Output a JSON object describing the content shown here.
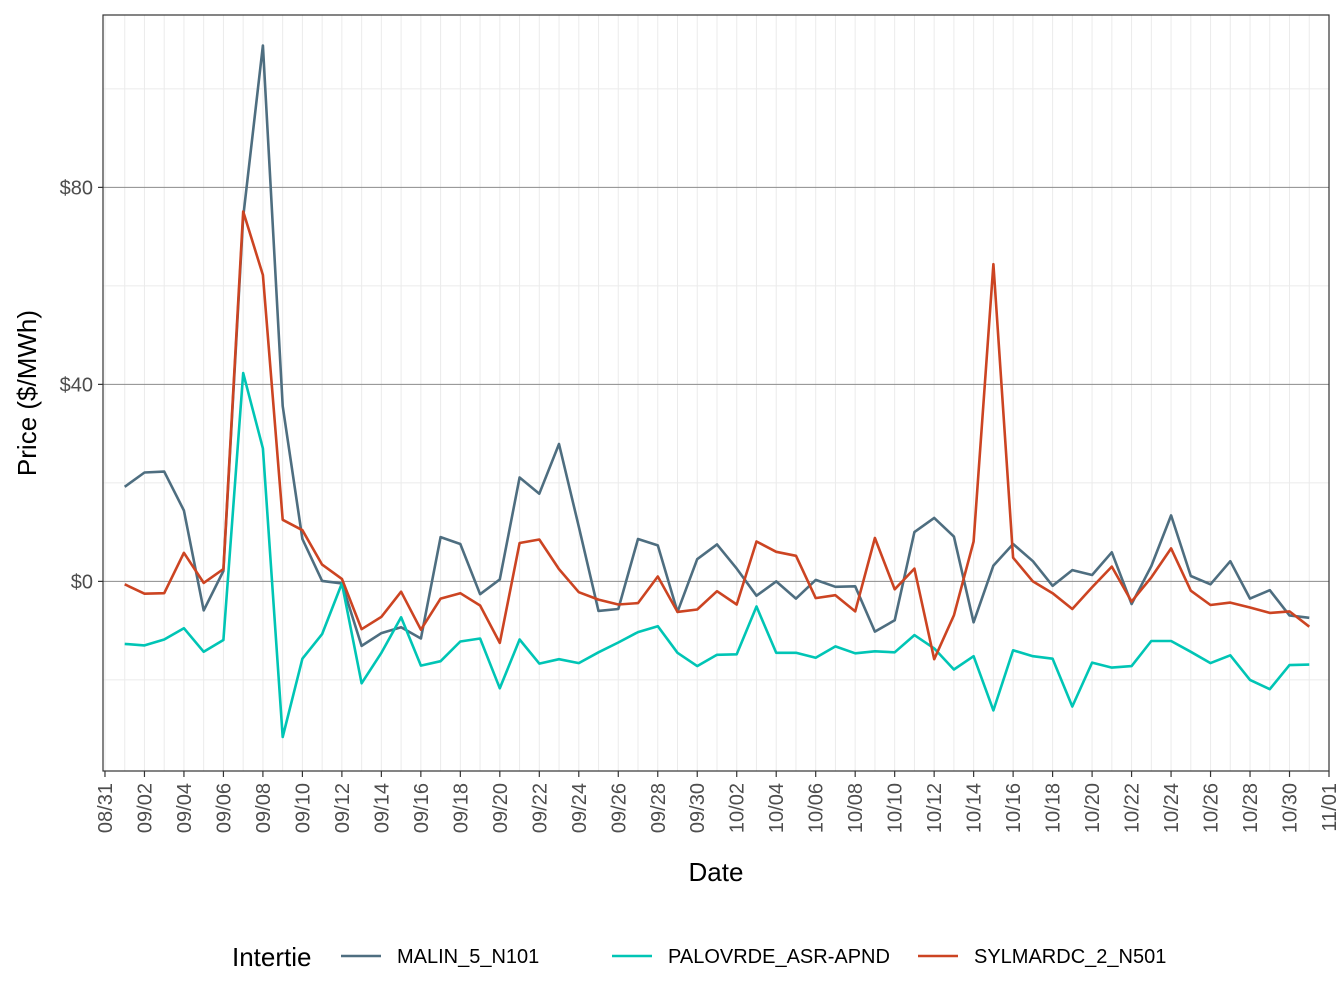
{
  "chart_data": {
    "type": "line",
    "xlabel": "Date",
    "ylabel": "Price ($/MWh)",
    "x_tick_labels": [
      "08/31",
      "09/02",
      "09/04",
      "09/06",
      "09/08",
      "09/10",
      "09/12",
      "09/14",
      "09/16",
      "09/18",
      "09/20",
      "09/22",
      "09/24",
      "09/26",
      "09/28",
      "09/30",
      "10/02",
      "10/04",
      "10/06",
      "10/08",
      "10/10",
      "10/12",
      "10/14",
      "10/16",
      "10/18",
      "10/20",
      "10/22",
      "10/24",
      "10/26",
      "10/28",
      "10/30",
      "11/01"
    ],
    "y_tick_labels": [
      "$0",
      "$40",
      "$80"
    ],
    "y_ticks": [
      0,
      40,
      80
    ],
    "ylim": [
      -38.5,
      115
    ],
    "xlim_days": [
      -1.1,
      61
    ],
    "grid": true,
    "legend": {
      "title": "Intertie",
      "position": "bottom"
    },
    "x_dates": [
      "09/01",
      "09/02",
      "09/03",
      "09/04",
      "09/05",
      "09/06",
      "09/07",
      "09/08",
      "09/09",
      "09/10",
      "09/11",
      "09/12",
      "09/13",
      "09/14",
      "09/15",
      "09/16",
      "09/17",
      "09/18",
      "09/19",
      "09/20",
      "09/21",
      "09/22",
      "09/23",
      "09/24",
      "09/25",
      "09/26",
      "09/27",
      "09/28",
      "09/29",
      "09/30",
      "10/01",
      "10/02",
      "10/03",
      "10/04",
      "10/05",
      "10/06",
      "10/07",
      "10/08",
      "10/09",
      "10/10",
      "10/11",
      "10/12",
      "10/13",
      "10/14",
      "10/15",
      "10/16",
      "10/17",
      "10/18",
      "10/19",
      "10/20",
      "10/21",
      "10/22",
      "10/23",
      "10/24",
      "10/25",
      "10/26",
      "10/27",
      "10/28",
      "10/29",
      "10/30",
      "10/31"
    ],
    "series": [
      {
        "name": "MALIN_5_N101",
        "color": "#4e6e80",
        "values": [
          19.2,
          22.1,
          22.3,
          14.4,
          -5.9,
          2.1,
          74.0,
          108.8,
          35.6,
          8.6,
          0.1,
          -0.4,
          -13.1,
          -10.5,
          -9.3,
          -11.6,
          9.0,
          7.6,
          -2.6,
          0.4,
          21.1,
          17.8,
          27.9,
          11.1,
          -6.0,
          -5.6,
          8.6,
          7.3,
          -6.2,
          4.5,
          7.5,
          2.6,
          -2.9,
          0.0,
          -3.5,
          0.3,
          -1.1,
          -1.0,
          -10.2,
          -7.9,
          10.0,
          12.9,
          9.1,
          -8.3,
          3.2,
          7.6,
          4.1,
          -0.9,
          2.3,
          1.3,
          5.9,
          -4.6,
          3.1,
          13.4,
          1.1,
          -0.6,
          4.1,
          -3.5,
          -1.8,
          -6.9,
          -7.4
        ]
      },
      {
        "name": "PALOVRDE_ASR-APND",
        "color": "#00c5b5",
        "values": [
          -12.7,
          -13.0,
          -11.8,
          -9.5,
          -14.3,
          -11.9,
          42.3,
          27.0,
          -31.6,
          -15.7,
          -10.7,
          -0.4,
          -20.7,
          -14.5,
          -7.3,
          -17.1,
          -16.2,
          -12.2,
          -11.6,
          -21.7,
          -11.8,
          -16.7,
          -15.8,
          -16.6,
          -14.4,
          -12.4,
          -10.3,
          -9.1,
          -14.5,
          -17.2,
          -14.9,
          -14.8,
          -5.1,
          -14.5,
          -14.5,
          -15.5,
          -13.2,
          -14.6,
          -14.2,
          -14.4,
          -10.9,
          -13.6,
          -17.9,
          -15.2,
          -26.2,
          -14.0,
          -15.2,
          -15.7,
          -25.4,
          -16.5,
          -17.5,
          -17.2,
          -12.1,
          -12.1,
          -14.3,
          -16.6,
          -15.0,
          -20.0,
          -21.9,
          -17.0,
          -16.9
        ]
      },
      {
        "name": "SYLMARDC_2_N501",
        "color": "#cc4422",
        "values": [
          -0.6,
          -2.5,
          -2.4,
          5.8,
          -0.3,
          2.5,
          75.1,
          62.2,
          12.5,
          10.4,
          3.4,
          0.5,
          -9.7,
          -7.2,
          -2.1,
          -9.8,
          -3.5,
          -2.4,
          -4.9,
          -12.5,
          7.8,
          8.5,
          2.5,
          -2.2,
          -3.7,
          -4.7,
          -4.4,
          1.0,
          -6.2,
          -5.7,
          -2.0,
          -4.7,
          8.1,
          6.0,
          5.2,
          -3.4,
          -2.8,
          -6.1,
          8.8,
          -1.6,
          2.6,
          -15.8,
          -6.9,
          8.1,
          64.4,
          4.8,
          0.0,
          -2.4,
          -5.6,
          -1.2,
          3.0,
          -4.1,
          0.8,
          6.7,
          -1.9,
          -4.8,
          -4.3,
          -5.3,
          -6.4,
          -6.1,
          -9.2
        ]
      }
    ]
  }
}
